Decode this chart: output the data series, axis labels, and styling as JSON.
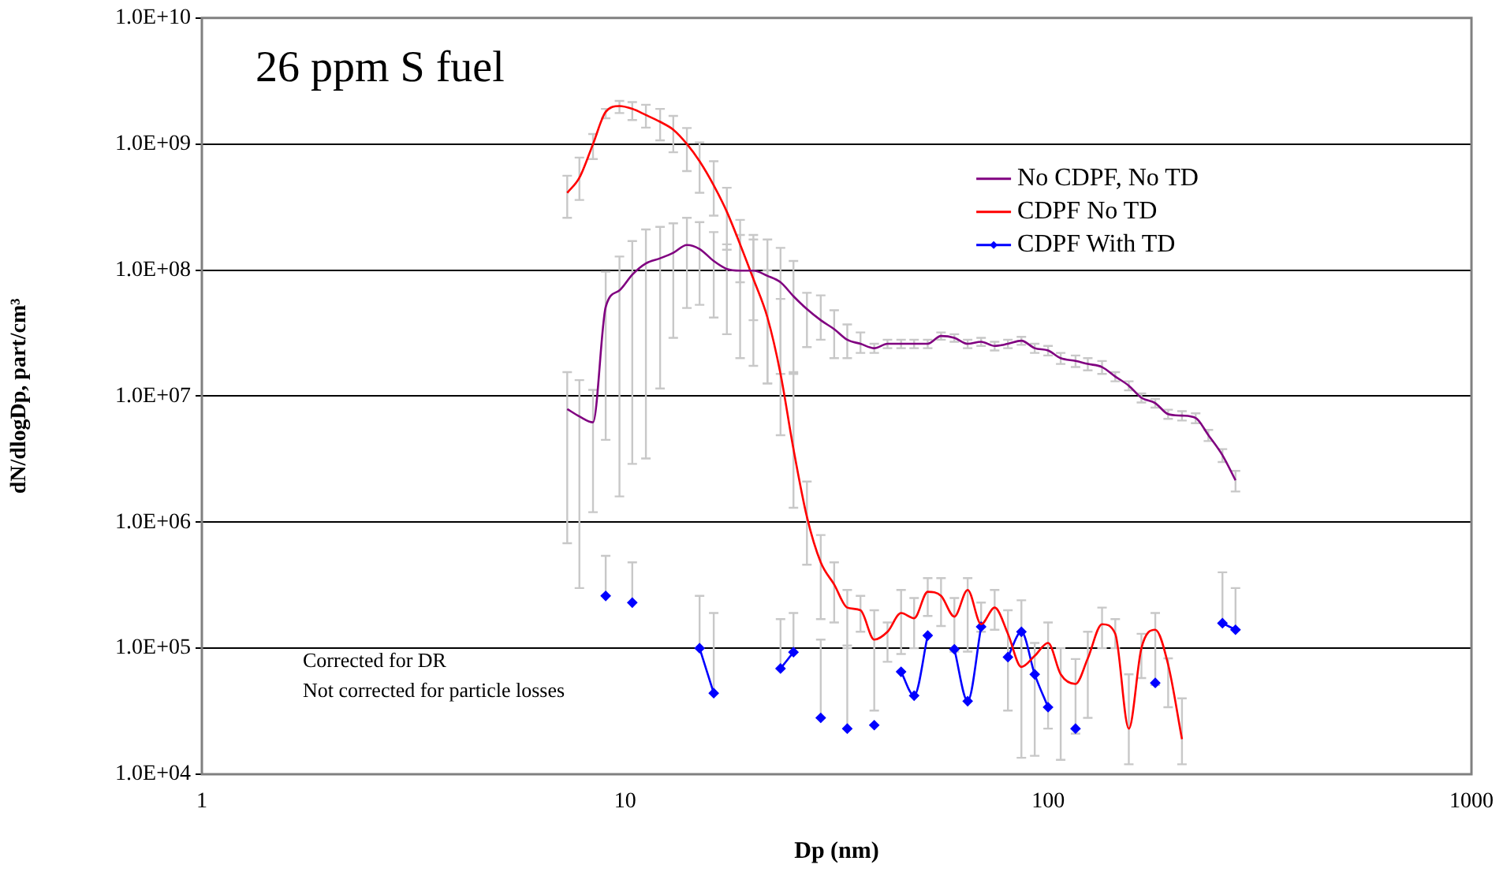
{
  "chart_data": {
    "type": "line",
    "title": "26 ppm S fuel",
    "xlabel": "Dp (nm)",
    "ylabel": "dN/dlogDp, part/cm³",
    "annotations": [
      "Corrected for DR",
      "Not corrected for particle losses"
    ],
    "x": [
      7.3,
      7.8,
      8.4,
      9.0,
      9.7,
      10.4,
      11.2,
      12.1,
      13.0,
      14.0,
      15.0,
      16.2,
      17.4,
      18.7,
      20.1,
      21.7,
      23.3,
      25.0,
      26.9,
      29.0,
      31.2,
      33.5,
      36.0,
      38.8,
      41.7,
      44.9,
      48.2,
      51.9,
      55.8,
      60.0,
      64.5,
      69.4,
      74.7,
      80.3,
      86.4,
      92.9,
      99.9,
      107,
      116,
      124,
      134,
      144,
      155,
      166,
      179,
      192,
      207,
      223,
      239,
      258,
      277
    ],
    "series": [
      {
        "name": "No CDPF, No TD",
        "color": "#800080",
        "values": [
          7900000.0,
          6900000.0,
          6200000.0,
          51000000.0,
          69000000.0,
          92000000.0,
          113000000.0,
          124000000.0,
          137000000.0,
          158000000.0,
          147000000.0,
          118000000.0,
          102000000.0,
          99000000.0,
          99000000.0,
          90000000.0,
          80000000.0,
          62000000.0,
          49000000.0,
          40000000.0,
          34000000.0,
          28000000.0,
          26000000.0,
          24000000.0,
          26000000.0,
          26000000.0,
          26000000.0,
          26000000.0,
          30000000.0,
          29000000.0,
          26000000.0,
          27000000.0,
          25000000.0,
          26000000.0,
          27500000.0,
          24000000.0,
          23000000.0,
          20000000.0,
          19000000.0,
          18000000.0,
          17000000.0,
          14300000.0,
          12100000.0,
          9700000.0,
          8800000.0,
          7200000.0,
          7000000.0,
          6700000.0,
          4900000.0,
          3400000.0,
          2150000.0
        ],
        "errors": [
          [
            680000.0,
            15500000.0
          ],
          [
            300000.0,
            13400000.0
          ],
          [
            1200000.0,
            11200000.0
          ],
          [
            4500000.0,
            97000000.0
          ],
          [
            1600000.0,
            128000000.0
          ],
          [
            2900000.0,
            170000000.0
          ],
          [
            3200000.0,
            210000000.0
          ],
          [
            11500000.0,
            220000000.0
          ],
          [
            29000000.0,
            235000000.0
          ],
          [
            50000000.0,
            260000000.0
          ],
          [
            53000000.0,
            240000000.0
          ],
          [
            42000000.0,
            200000000.0
          ],
          [
            31000000.0,
            160000000.0
          ],
          [
            20000000.0,
            190000000.0
          ],
          [
            17400000.0,
            175000000.0
          ],
          [
            12600000.0,
            175000000.0
          ],
          [
            15000000.0,
            150000000.0
          ],
          [
            15500000.0,
            118000000.0
          ],
          [
            24500000.0,
            66000000.0
          ],
          [
            28000000.0,
            63000000.0
          ],
          [
            20000000.0,
            48000000.0
          ],
          [
            20000000.0,
            37000000.0
          ],
          [
            22000000.0,
            32000000.0
          ],
          2000000.0,
          2000000.0,
          2000000.0,
          2000000.0,
          2000000.0,
          2000000.0,
          2000000.0,
          2000000.0,
          2000000.0,
          2000000.0,
          2000000.0,
          2000000.0,
          2000000.0,
          2000000.0,
          2000000.0,
          2000000.0,
          2000000.0,
          2000000.0,
          1200000.0,
          1000000.0,
          800000.0,
          700000.0,
          600000.0,
          600000.0,
          600000.0,
          500000.0,
          400000.0,
          400000.0
        ]
      },
      {
        "name": "CDPF No TD",
        "color": "#ff0000",
        "values": [
          410000000.0,
          540000000.0,
          1000000000.0,
          1800000000.0,
          2000000000.0,
          1900000000.0,
          1700000000.0,
          1500000000.0,
          1300000000.0,
          1000000000.0,
          730000000.0,
          470000000.0,
          290000000.0,
          160000000.0,
          85000000.0,
          42000000.0,
          15000000.0,
          3800000.0,
          1100000.0,
          480000.0,
          320000.0,
          210000.0,
          200000.0,
          117000.0,
          135000.0,
          190000.0,
          173000.0,
          280000.0,
          260000.0,
          178000.0,
          290000.0,
          155000.0,
          210000.0,
          130000.0,
          71000.0,
          87000.0,
          110000.0,
          62000.0,
          52000.0,
          83000.0,
          155000.0,
          130000.0,
          23000.0,
          100000.0,
          140000.0,
          74000.0,
          19000.0,
          null,
          null,
          null,
          null
        ],
        "errors": [
          [
            260000000.0,
            560000000.0
          ],
          [
            360000000.0,
            780000000.0
          ],
          [
            760000000.0,
            1200000000.0
          ],
          [
            1600000000.0,
            1900000000.0
          ],
          [
            1760000000.0,
            2200000000.0
          ],
          [
            1550000000.0,
            2150000000.0
          ],
          [
            1350000000.0,
            2050000000.0
          ],
          [
            1070000000.0,
            1900000000.0
          ],
          [
            860000000.0,
            1670000000.0
          ],
          [
            610000000.0,
            1340000000.0
          ],
          [
            410000000.0,
            1030000000.0
          ],
          [
            270000000.0,
            730000000.0
          ],
          [
            145000000.0,
            450000000.0
          ],
          [
            80000000.0,
            250000000.0
          ],
          [
            40000000.0,
            190000000.0
          ],
          [
            12600000.0,
            100000000.0
          ],
          [
            4900000.0,
            59000000.0
          ],
          [
            1300000.0,
            15000000.0
          ],
          [
            460000.0,
            2100000.0
          ],
          [
            170000.0,
            790000.0
          ],
          [
            160000.0,
            480000.0
          ],
          [
            100000.0,
            290000.0
          ],
          [
            135000.0,
            260000.0
          ],
          [
            32000.0,
            200000.0
          ],
          [
            78000.0,
            160000.0
          ],
          [
            90000.0,
            290000.0
          ],
          [
            100000.0,
            250000.0
          ],
          [
            180000.0,
            360000.0
          ],
          [
            150000.0,
            360000.0
          ],
          [
            94000.0,
            250000.0
          ],
          [
            94000.0,
            360000.0
          ],
          [
            135000.0,
            230000.0
          ],
          [
            140000.0,
            290000.0
          ],
          [
            32000.0,
            200000.0
          ],
          [
            13500.0,
            240000.0
          ],
          [
            14000.0,
            110000.0
          ],
          [
            23000.0,
            160000.0
          ],
          [
            13000.0,
            100000.0
          ],
          [
            21000.0,
            82000.0
          ],
          [
            28000.0,
            135000.0
          ],
          [
            100000.0,
            210000.0
          ],
          [
            100000.0,
            170000.0
          ],
          [
            12000.0,
            62000.0
          ],
          [
            58000.0,
            130000.0
          ],
          [
            51000.0,
            190000.0
          ],
          [
            34000.0,
            83000.0
          ],
          [
            12000.0,
            40000.0
          ],
          null,
          null,
          null,
          null
        ]
      },
      {
        "name": "CDPF With TD",
        "color": "#0000ff",
        "marker": "diamond",
        "values": [
          null,
          null,
          null,
          260000.0,
          null,
          230000.0,
          null,
          null,
          null,
          null,
          100000.0,
          44000.0,
          null,
          null,
          null,
          null,
          69000.0,
          93000.0,
          null,
          28000.0,
          null,
          23000.0,
          null,
          24500.0,
          null,
          65000.0,
          42000.0,
          126000.0,
          null,
          98000.0,
          38000.0,
          148000.0,
          null,
          85000.0,
          135000.0,
          62000.0,
          34000.0,
          null,
          23000.0,
          null,
          null,
          null,
          null,
          null,
          53000.0,
          null,
          null,
          null,
          null,
          158000.0,
          140000.0
        ],
        "errors": [
          null,
          null,
          null,
          [
            260000.0,
            540000.0
          ],
          null,
          [
            230000.0,
            480000.0
          ],
          null,
          null,
          null,
          null,
          [
            100000.0,
            260000.0
          ],
          [
            44000.0,
            190000.0
          ],
          null,
          null,
          null,
          null,
          [
            69000.0,
            170000.0
          ],
          [
            93000.0,
            190000.0
          ],
          null,
          [
            28000.0,
            117000.0
          ],
          null,
          [
            23000.0,
            105000.0
          ],
          null,
          null,
          null,
          null,
          null,
          null,
          null,
          null,
          null,
          null,
          null,
          null,
          null,
          null,
          null,
          null,
          null,
          null,
          null,
          null,
          null,
          null,
          null,
          null,
          null,
          null,
          null,
          [
            158000.0,
            400000.0
          ],
          [
            140000.0,
            300000.0
          ]
        ]
      }
    ],
    "log": "xy",
    "xlim": [
      1,
      1000
    ],
    "xticks": [
      1,
      10,
      100,
      1000
    ],
    "ylim": [
      10000.0,
      10000000000.0
    ],
    "yticks": [
      {
        "value": 10000.0,
        "label": "1.0E+04"
      },
      {
        "value": 100000.0,
        "label": "1.0E+05"
      },
      {
        "value": 1000000.0,
        "label": "1.0E+06"
      },
      {
        "value": 10000000.0,
        "label": "1.0E+07"
      },
      {
        "value": 100000000.0,
        "label": "1.0E+08"
      },
      {
        "value": 1000000000.0,
        "label": "1.0E+09"
      },
      {
        "value": 10000000000.0,
        "label": "1.0E+10"
      }
    ],
    "grid": "y",
    "legend": "right"
  }
}
